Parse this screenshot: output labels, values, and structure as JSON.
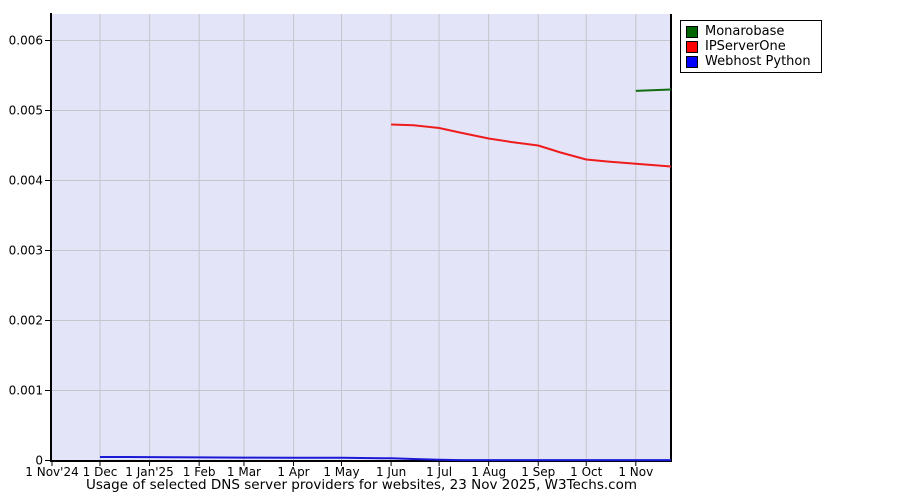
{
  "page": {
    "background": "#ffffff",
    "source": "W3Techs.com"
  },
  "chart_data": {
    "type": "line",
    "title": "Usage of selected DNS server providers for websites, 23 Nov 2025, W3Techs.com",
    "xlabel": "",
    "ylabel": "",
    "x_start": "2024-11-01",
    "x_end": "2025-11-23",
    "ylim": [
      0,
      0.006
    ],
    "grid": true,
    "legend_position": "top-right-outside",
    "plot_bg": "#e4e4f8",
    "grid_color": "#c5c5cd",
    "axis_color": "#000000",
    "text_color": "#000000",
    "y_ticks": [
      {
        "value": 0,
        "label": "0"
      },
      {
        "value": 0.001,
        "label": "0.001"
      },
      {
        "value": 0.002,
        "label": "0.002"
      },
      {
        "value": 0.003,
        "label": "0.003"
      },
      {
        "value": 0.004,
        "label": "0.004"
      },
      {
        "value": 0.005,
        "label": "0.005"
      },
      {
        "value": 0.006,
        "label": "0.006"
      }
    ],
    "x_ticks": [
      {
        "date": "2024-11-01",
        "label": "1 Nov'24"
      },
      {
        "date": "2024-12-01",
        "label": "1 Dec"
      },
      {
        "date": "2025-01-01",
        "label": "1 Jan'25"
      },
      {
        "date": "2025-02-01",
        "label": "1 Feb"
      },
      {
        "date": "2025-03-01",
        "label": "1 Mar"
      },
      {
        "date": "2025-04-01",
        "label": "1 Apr"
      },
      {
        "date": "2025-05-01",
        "label": "1 May"
      },
      {
        "date": "2025-06-01",
        "label": "1 Jun"
      },
      {
        "date": "2025-07-01",
        "label": "1 Jul"
      },
      {
        "date": "2025-08-01",
        "label": "1 Aug"
      },
      {
        "date": "2025-09-01",
        "label": "1 Sep"
      },
      {
        "date": "2025-10-01",
        "label": "1 Oct"
      },
      {
        "date": "2025-11-01",
        "label": "1 Nov"
      }
    ],
    "series": [
      {
        "name": "Monarobase",
        "legend_color": "#006400",
        "line_color": "#0f6e0f",
        "points": [
          {
            "date": "2025-11-01",
            "value": 0.00528
          },
          {
            "date": "2025-11-23",
            "value": 0.0053
          }
        ]
      },
      {
        "name": "IPServerOne",
        "legend_color": "#ff0000",
        "line_color": "#ee1c1c",
        "points": [
          {
            "date": "2025-06-01",
            "value": 0.0048
          },
          {
            "date": "2025-06-15",
            "value": 0.00479
          },
          {
            "date": "2025-07-01",
            "value": 0.00475
          },
          {
            "date": "2025-07-15",
            "value": 0.00468
          },
          {
            "date": "2025-08-01",
            "value": 0.0046
          },
          {
            "date": "2025-08-15",
            "value": 0.00455
          },
          {
            "date": "2025-09-01",
            "value": 0.0045
          },
          {
            "date": "2025-09-15",
            "value": 0.0044
          },
          {
            "date": "2025-10-01",
            "value": 0.0043
          },
          {
            "date": "2025-10-15",
            "value": 0.00427
          },
          {
            "date": "2025-11-01",
            "value": 0.00424
          },
          {
            "date": "2025-11-23",
            "value": 0.0042
          }
        ]
      },
      {
        "name": "Webhost Python",
        "legend_color": "#0000ff",
        "line_color": "#1a1ad6",
        "points": [
          {
            "date": "2024-12-01",
            "value": 5e-05
          },
          {
            "date": "2025-01-01",
            "value": 4.8e-05
          },
          {
            "date": "2025-02-01",
            "value": 4.5e-05
          },
          {
            "date": "2025-03-01",
            "value": 4.2e-05
          },
          {
            "date": "2025-04-01",
            "value": 4e-05
          },
          {
            "date": "2025-05-01",
            "value": 3.8e-05
          },
          {
            "date": "2025-06-01",
            "value": 3.2e-05
          },
          {
            "date": "2025-06-15",
            "value": 2.2e-05
          },
          {
            "date": "2025-07-01",
            "value": 1.2e-05
          },
          {
            "date": "2025-07-15",
            "value": 6e-06
          },
          {
            "date": "2025-08-01",
            "value": 5e-06
          },
          {
            "date": "2025-09-01",
            "value": 5e-06
          },
          {
            "date": "2025-10-01",
            "value": 5e-06
          },
          {
            "date": "2025-11-01",
            "value": 5e-06
          },
          {
            "date": "2025-11-23",
            "value": 6e-06
          }
        ]
      }
    ]
  }
}
